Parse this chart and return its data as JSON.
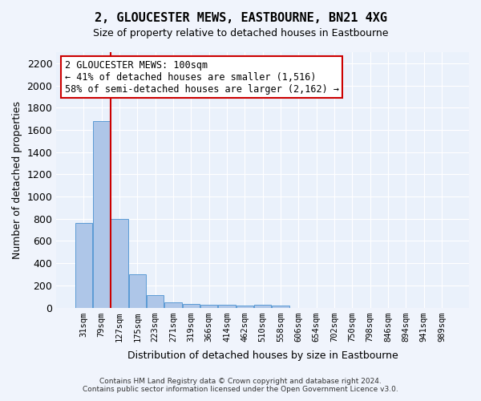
{
  "title": "2, GLOUCESTER MEWS, EASTBOURNE, BN21 4XG",
  "subtitle": "Size of property relative to detached houses in Eastbourne",
  "xlabel": "Distribution of detached houses by size in Eastbourne",
  "ylabel": "Number of detached properties",
  "footnote1": "Contains HM Land Registry data © Crown copyright and database right 2024.",
  "footnote2": "Contains public sector information licensed under the Open Government Licence v3.0.",
  "bin_labels": [
    "31sqm",
    "79sqm",
    "127sqm",
    "175sqm",
    "223sqm",
    "271sqm",
    "319sqm",
    "366sqm",
    "414sqm",
    "462sqm",
    "510sqm",
    "558sqm",
    "606sqm",
    "654sqm",
    "702sqm",
    "750sqm",
    "798sqm",
    "846sqm",
    "894sqm",
    "941sqm",
    "989sqm"
  ],
  "bar_heights": [
    760,
    1680,
    795,
    300,
    115,
    45,
    32,
    25,
    22,
    18,
    22,
    18,
    0,
    0,
    0,
    0,
    0,
    0,
    0,
    0,
    0
  ],
  "bar_color": "#aec6e8",
  "bar_edge_color": "#5b9bd5",
  "bg_color": "#eaf1fb",
  "grid_color": "#ffffff",
  "vline_x": 1.5,
  "vline_color": "#cc0000",
  "annotation_text": "2 GLOUCESTER MEWS: 100sqm\n← 41% of detached houses are smaller (1,516)\n58% of semi-detached houses are larger (2,162) →",
  "annotation_box_color": "#ffffff",
  "annotation_box_edge": "#cc0000",
  "ylim": [
    0,
    2300
  ],
  "yticks": [
    0,
    200,
    400,
    600,
    800,
    1000,
    1200,
    1400,
    1600,
    1800,
    2000,
    2200
  ]
}
